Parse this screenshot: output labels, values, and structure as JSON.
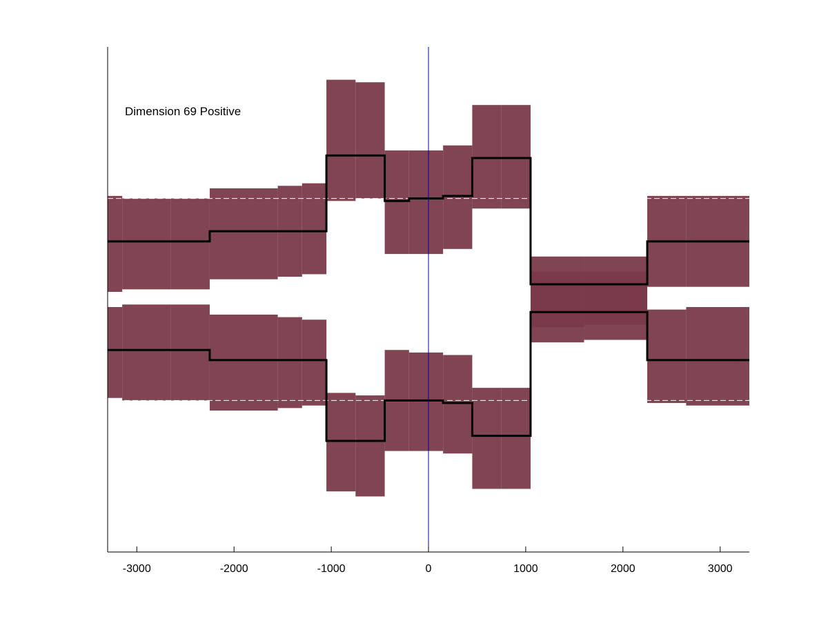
{
  "chart_data": {
    "type": "area",
    "title": "",
    "xlabel": "",
    "ylabel": "",
    "annotation": "Dimension 69 Positive",
    "xlim": [
      -3300,
      3300
    ],
    "ylim": [
      -1,
      1
    ],
    "xticks": [
      -3000,
      -2000,
      -1000,
      0,
      1000,
      2000,
      3000
    ],
    "xtick_labels": [
      "-3000",
      "-2000",
      "-1000",
      "0",
      "1000",
      "2000",
      "3000"
    ],
    "yticks_visible": false,
    "grid": false,
    "legend": "none",
    "zero_line_x": 0,
    "reference_lines_y": [
      0.4,
      -0.4
    ],
    "colors": {
      "band": "#7a3a4a",
      "line": "#000000",
      "zero_line": "#0000aa",
      "reference_line": "#ffffff",
      "axis": "#000000"
    },
    "series": [
      {
        "steps": [
          {
            "x0": -3300,
            "x1": -3150,
            "mean": 0.23,
            "lo": 0.03,
            "hi": 0.41
          },
          {
            "x0": -3150,
            "x1": -2650,
            "mean": 0.23,
            "lo": 0.04,
            "hi": 0.4
          },
          {
            "x0": -2650,
            "x1": -2250,
            "mean": 0.23,
            "lo": 0.04,
            "hi": 0.4
          },
          {
            "x0": -2250,
            "x1": -1550,
            "mean": 0.27,
            "lo": 0.08,
            "hi": 0.44
          },
          {
            "x0": -1550,
            "x1": -1300,
            "mean": 0.27,
            "lo": 0.09,
            "hi": 0.45
          },
          {
            "x0": -1300,
            "x1": -1050,
            "mean": 0.27,
            "lo": 0.1,
            "hi": 0.46
          },
          {
            "x0": -1050,
            "x1": -750,
            "mean": 0.57,
            "lo": 0.39,
            "hi": 0.87
          },
          {
            "x0": -750,
            "x1": -450,
            "mean": 0.57,
            "lo": 0.4,
            "hi": 0.86
          },
          {
            "x0": -450,
            "x1": -200,
            "mean": 0.39,
            "lo": 0.18,
            "hi": 0.59
          },
          {
            "x0": -200,
            "x1": 150,
            "mean": 0.4,
            "lo": 0.18,
            "hi": 0.59
          },
          {
            "x0": 150,
            "x1": 450,
            "mean": 0.41,
            "lo": 0.2,
            "hi": 0.61
          },
          {
            "x0": 450,
            "x1": 750,
            "mean": 0.56,
            "lo": 0.36,
            "hi": 0.77
          },
          {
            "x0": 750,
            "x1": 1050,
            "mean": 0.56,
            "lo": 0.36,
            "hi": 0.77
          },
          {
            "x0": 1050,
            "x1": 1600,
            "mean": 0.06,
            "lo": -0.11,
            "hi": 0.17
          },
          {
            "x0": 1600,
            "x1": 2250,
            "mean": 0.06,
            "lo": -0.1,
            "hi": 0.17
          },
          {
            "x0": 2250,
            "x1": 2650,
            "mean": 0.23,
            "lo": 0.05,
            "hi": 0.41
          },
          {
            "x0": 2650,
            "x1": 3300,
            "mean": 0.23,
            "lo": 0.05,
            "hi": 0.41
          }
        ]
      },
      {
        "steps": [
          {
            "x0": -3300,
            "x1": -3150,
            "mean": -0.2,
            "lo": -0.39,
            "hi": -0.03
          },
          {
            "x0": -3150,
            "x1": -2650,
            "mean": -0.2,
            "lo": -0.4,
            "hi": -0.02
          },
          {
            "x0": -2650,
            "x1": -2250,
            "mean": -0.2,
            "lo": -0.4,
            "hi": -0.02
          },
          {
            "x0": -2250,
            "x1": -1550,
            "mean": -0.24,
            "lo": -0.44,
            "hi": -0.06
          },
          {
            "x0": -1550,
            "x1": -1300,
            "mean": -0.24,
            "lo": -0.43,
            "hi": -0.07
          },
          {
            "x0": -1300,
            "x1": -1050,
            "mean": -0.24,
            "lo": -0.42,
            "hi": -0.08
          },
          {
            "x0": -1050,
            "x1": -750,
            "mean": -0.56,
            "lo": -0.76,
            "hi": -0.37
          },
          {
            "x0": -750,
            "x1": -450,
            "mean": -0.56,
            "lo": -0.78,
            "hi": -0.38
          },
          {
            "x0": -450,
            "x1": -200,
            "mean": -0.4,
            "lo": -0.6,
            "hi": -0.2
          },
          {
            "x0": -200,
            "x1": 150,
            "mean": -0.4,
            "lo": -0.6,
            "hi": -0.21
          },
          {
            "x0": 150,
            "x1": 450,
            "mean": -0.41,
            "lo": -0.61,
            "hi": -0.22
          },
          {
            "x0": 450,
            "x1": 750,
            "mean": -0.54,
            "lo": -0.75,
            "hi": -0.35
          },
          {
            "x0": 750,
            "x1": 1050,
            "mean": -0.54,
            "lo": -0.75,
            "hi": -0.35
          },
          {
            "x0": 1050,
            "x1": 1600,
            "mean": -0.05,
            "lo": -0.17,
            "hi": 0.11
          },
          {
            "x0": 1600,
            "x1": 2250,
            "mean": -0.05,
            "lo": -0.16,
            "hi": 0.11
          },
          {
            "x0": 2250,
            "x1": 2650,
            "mean": -0.24,
            "lo": -0.41,
            "hi": -0.04
          },
          {
            "x0": 2650,
            "x1": 3300,
            "mean": -0.24,
            "lo": -0.42,
            "hi": -0.03
          }
        ]
      }
    ]
  }
}
